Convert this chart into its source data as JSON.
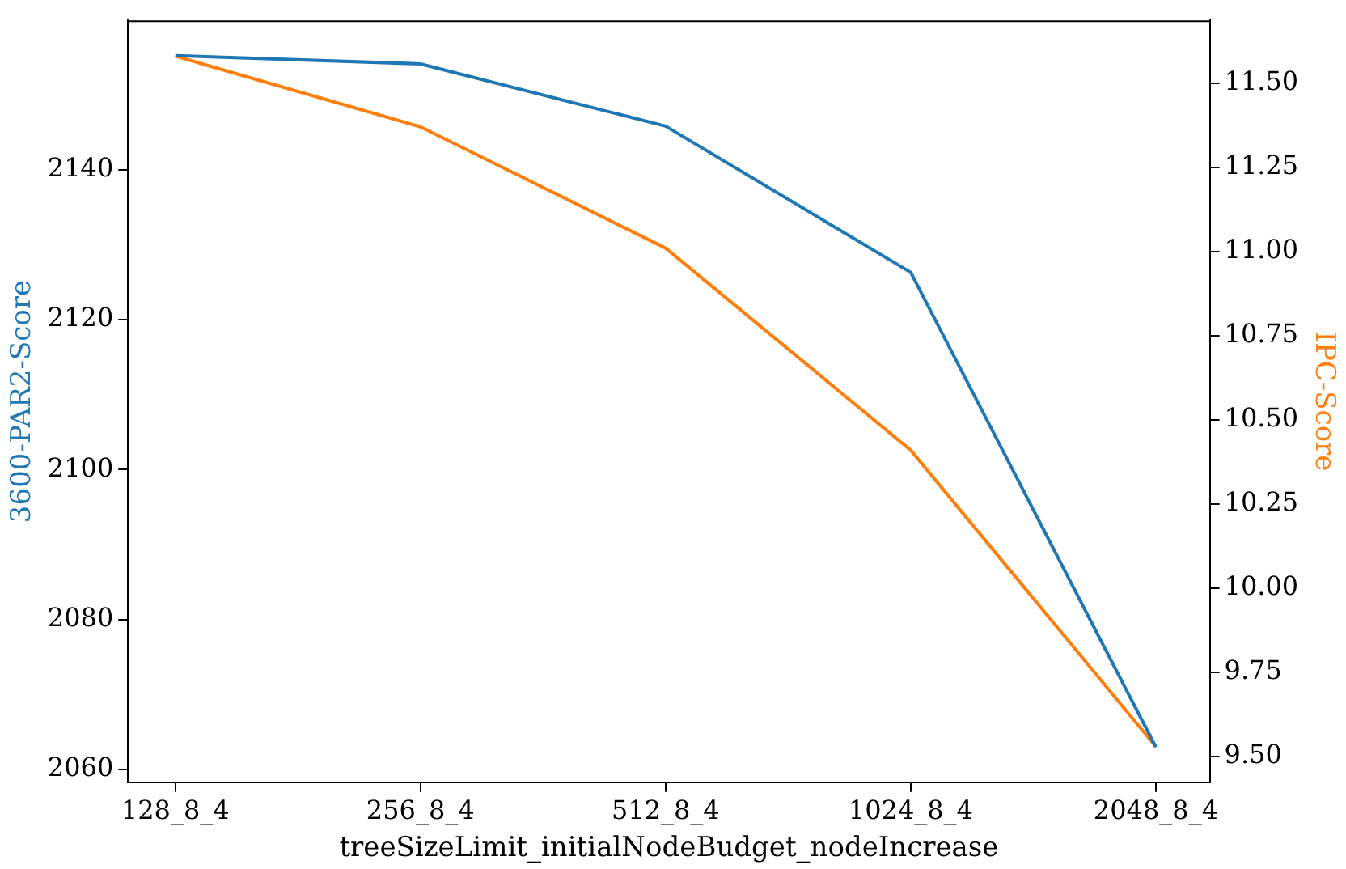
{
  "chart_data": {
    "type": "line",
    "xlabel": "treeSizeLimit_initialNodeBudget_nodeIncrease",
    "ylabel": "3600-PAR2-Score",
    "y2label": "IPC-Score",
    "categories": [
      "128_8_4",
      "256_8_4",
      "512_8_4",
      "1024_8_4",
      "2048_8_4"
    ],
    "series": [
      {
        "color": "#1f77b4",
        "values": [
          2155.2,
          2154.1,
          2145.8,
          2126.3,
          2063
        ]
      },
      {
        "color": "#ff7f0e",
        "axis": "y2",
        "values": [
          11.58,
          11.37,
          11.01,
          10.41,
          9.53
        ]
      }
    ],
    "ylim": [
      2058.3,
      2159.9
    ],
    "yticks": [
      2060,
      2080,
      2100,
      2120,
      2140
    ],
    "y2lim": [
      9.424,
      11.686
    ],
    "y2ticks": [
      {
        "value": 9.5,
        "label": "9.50"
      },
      {
        "value": 9.75,
        "label": "9.75"
      },
      {
        "value": 10,
        "label": "10.00"
      },
      {
        "value": 10.25,
        "label": "10.25"
      },
      {
        "value": 10.5,
        "label": "10.50"
      },
      {
        "value": 10.75,
        "label": "10.75"
      },
      {
        "value": 11,
        "label": "11.00"
      },
      {
        "value": 11.25,
        "label": "11.25"
      },
      {
        "value": 11.5,
        "label": "11.50"
      }
    ],
    "grid": false,
    "legend": false,
    "marker": "none",
    "line_style": "solid"
  }
}
